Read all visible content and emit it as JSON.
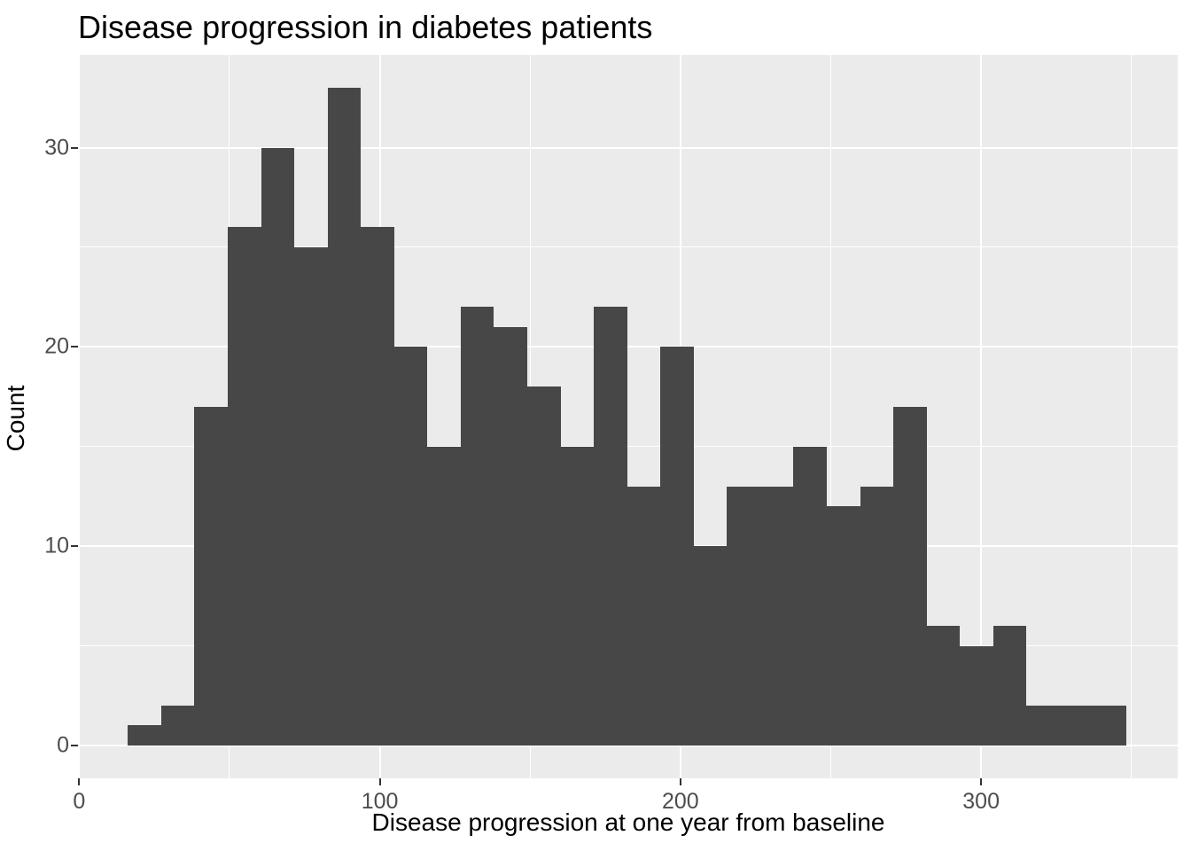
{
  "title": "Disease progression in diabetes patients",
  "chart_data": {
    "type": "bar",
    "subtype": "histogram",
    "title": "Disease progression in diabetes patients",
    "xlabel": "Disease progression at one year from baseline",
    "ylabel": "Count",
    "bin_start": 16.2,
    "bin_width": 11.07,
    "counts": [
      1,
      2,
      17,
      26,
      30,
      25,
      33,
      26,
      20,
      15,
      22,
      21,
      18,
      15,
      22,
      13,
      20,
      10,
      13,
      13,
      15,
      12,
      13,
      17,
      6,
      5,
      6,
      2,
      2,
      2
    ],
    "total_count": 442,
    "x_ticks": [
      0,
      100,
      200,
      300
    ],
    "x_minor_ticks": [
      50,
      150,
      250,
      350
    ],
    "y_ticks": [
      0,
      10,
      20,
      30
    ],
    "y_minor_ticks": [
      5,
      15,
      25
    ],
    "xlim": [
      -0.4,
      365.4
    ],
    "ylim": [
      -1.65,
      34.65
    ],
    "grid": "on",
    "legend": "none",
    "bar_color": "#474747",
    "panel_color": "#EBEBEB",
    "grid_color": "#FFFFFF",
    "tick_label_color": "#4D4D4D",
    "axis_title_color": "#000000",
    "tick_mark_color": "#333333"
  }
}
